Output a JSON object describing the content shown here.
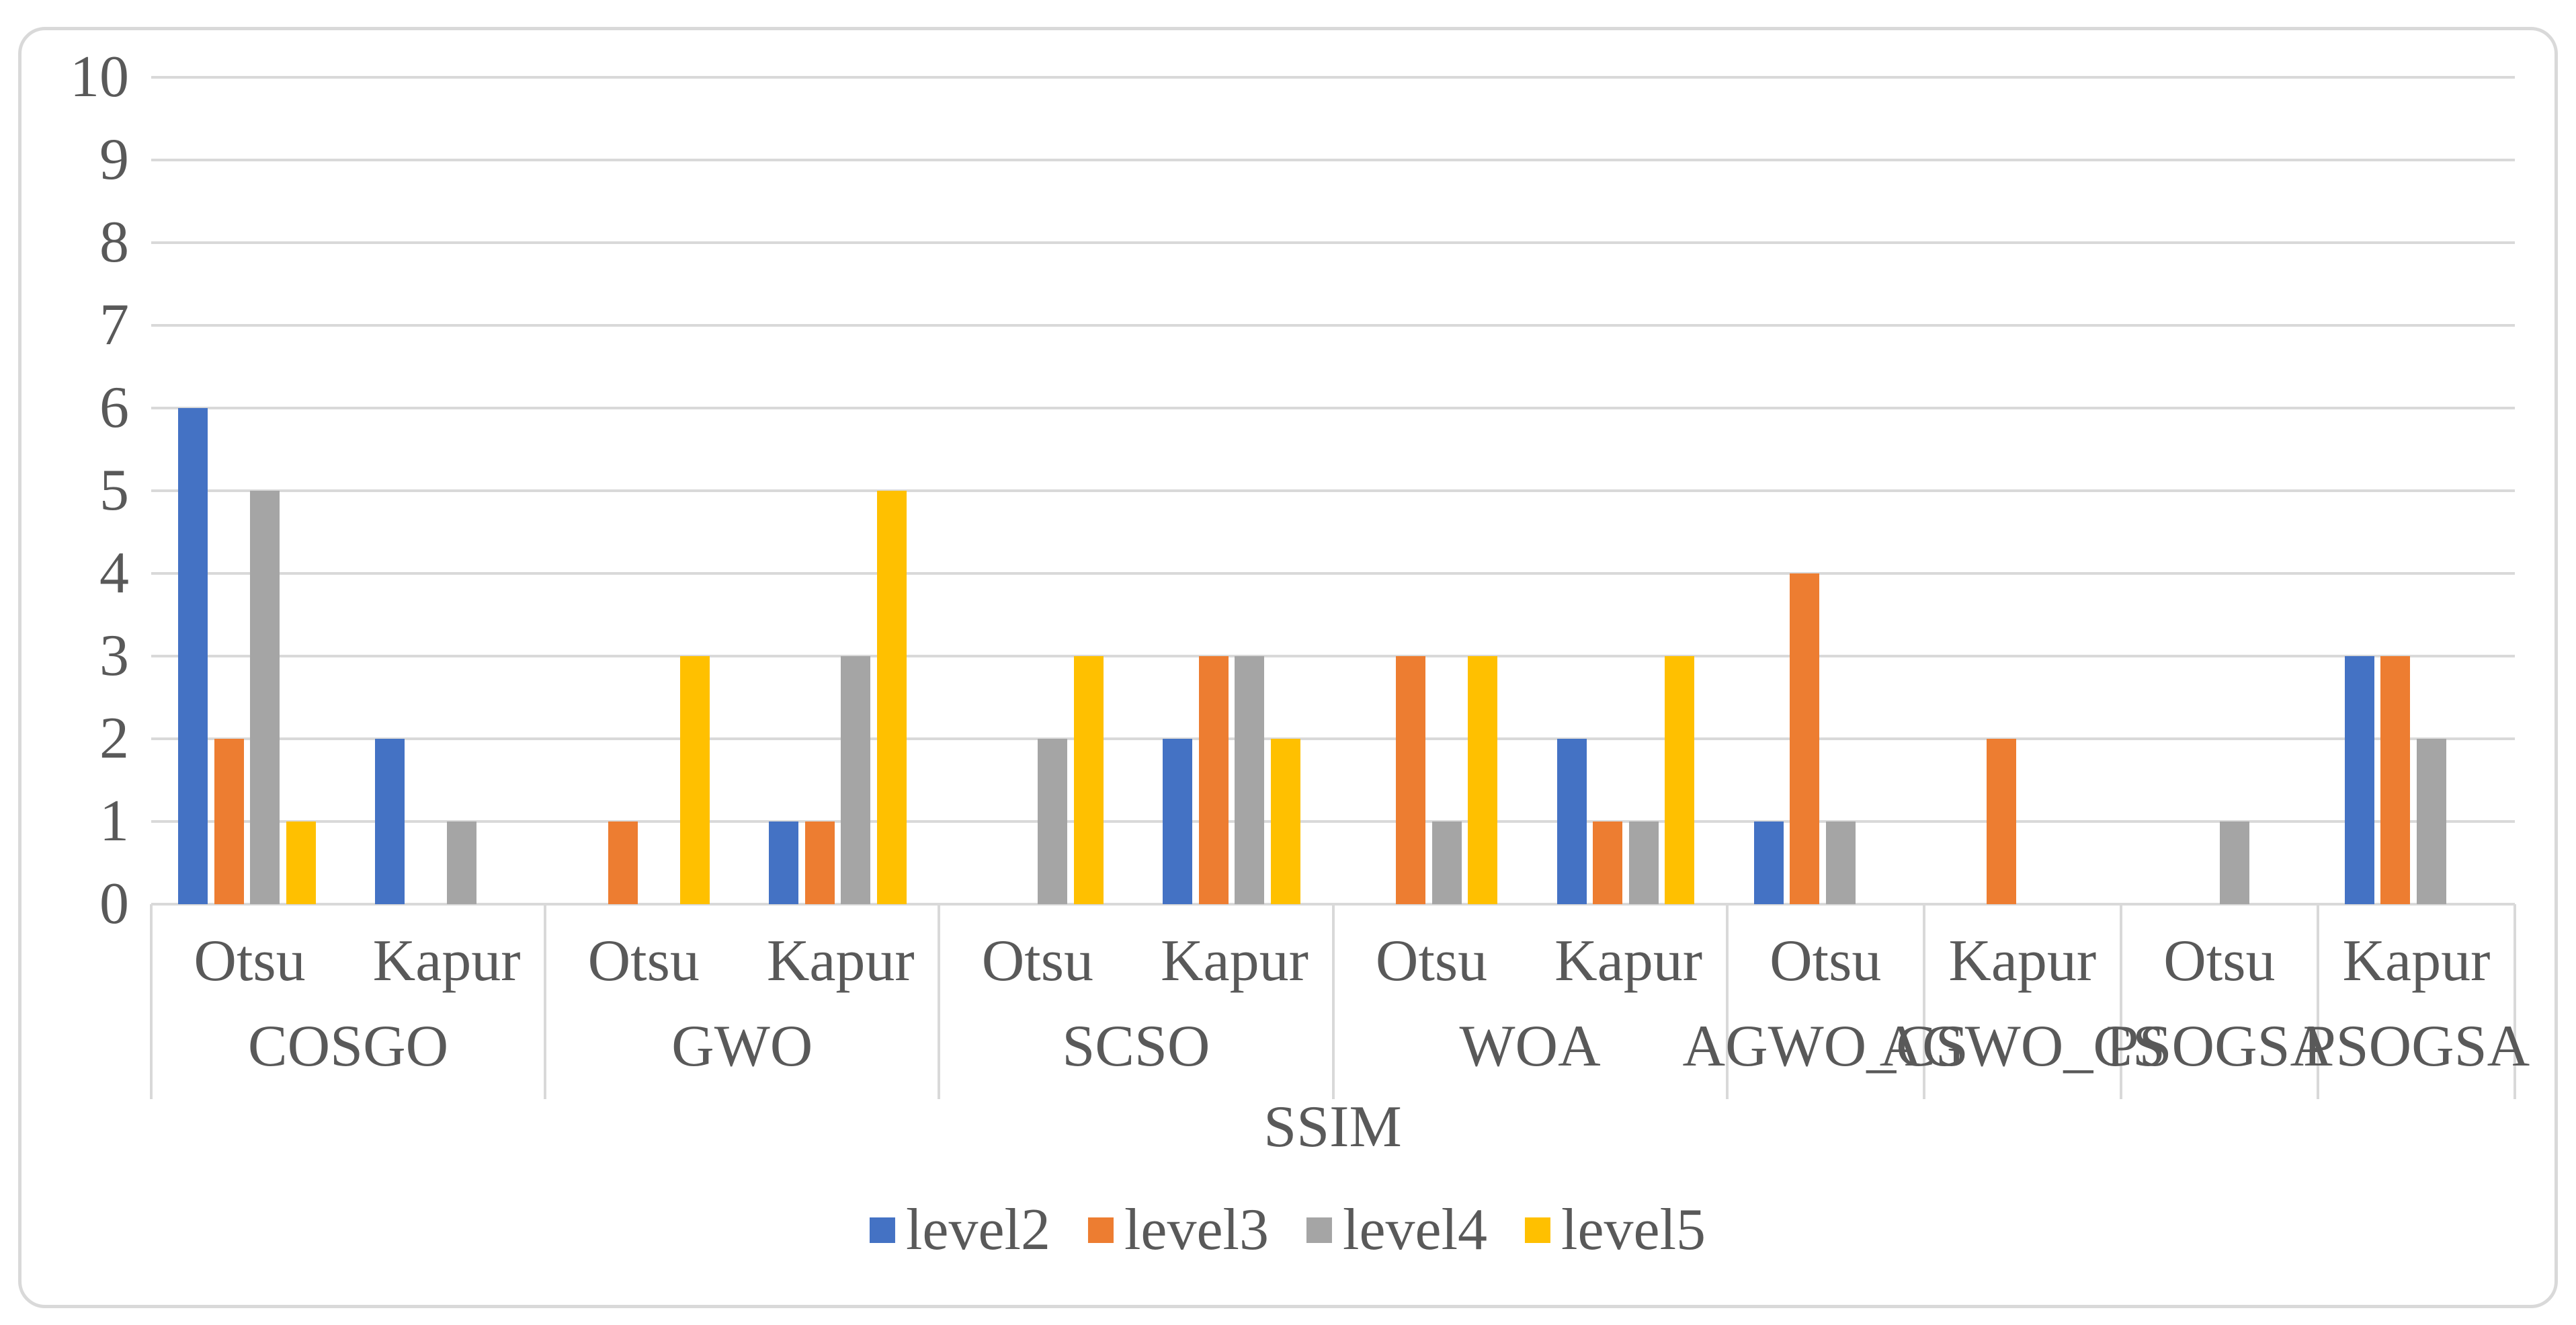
{
  "chart_data": {
    "type": "bar",
    "axis_title": "SSIM",
    "xlabel": "SSIM",
    "ylabel": "",
    "ylim": [
      0,
      10
    ],
    "ytick_step": 1,
    "grid": true,
    "legend_position": "bottom",
    "axis_levels": [
      "threshold-method",
      "algorithm",
      "metric"
    ],
    "groups": [
      {
        "label": "COSGO",
        "methods": [
          "Otsu",
          "Kapur"
        ]
      },
      {
        "label": "GWO",
        "methods": [
          "Otsu",
          "Kapur"
        ]
      },
      {
        "label": "SCSO",
        "methods": [
          "Otsu",
          "Kapur"
        ]
      },
      {
        "label": "WOA",
        "methods": [
          "Otsu",
          "Kapur"
        ]
      },
      {
        "label": "AGWO_CS",
        "methods": [
          "Otsu"
        ]
      },
      {
        "label": "AGWO_CS",
        "methods": [
          "Kapur"
        ]
      },
      {
        "label": "PSOGSA",
        "methods": [
          "Otsu"
        ]
      },
      {
        "label": "PSOGSA",
        "methods": [
          "Kapur"
        ]
      }
    ],
    "categories": [
      "COSGO-Otsu",
      "COSGO-Kapur",
      "GWO-Otsu",
      "GWO-Kapur",
      "SCSO-Otsu",
      "SCSO-Kapur",
      "WOA-Otsu",
      "WOA-Kapur",
      "AGWO_CS-Otsu",
      "AGWO_CS-Kapur",
      "PSOGSA-Otsu",
      "PSOGSA-Kapur"
    ],
    "series": [
      {
        "name": "level2",
        "color": "#4472C4",
        "values": [
          6,
          2,
          0,
          1,
          0,
          2,
          0,
          2,
          1,
          0,
          0,
          3
        ]
      },
      {
        "name": "level3",
        "color": "#ED7D31",
        "values": [
          2,
          0,
          1,
          1,
          0,
          3,
          3,
          1,
          4,
          2,
          0,
          3
        ]
      },
      {
        "name": "level4",
        "color": "#A5A5A5",
        "values": [
          5,
          1,
          0,
          3,
          2,
          3,
          1,
          1,
          1,
          0,
          1,
          2
        ]
      },
      {
        "name": "level5",
        "color": "#FFC000",
        "values": [
          1,
          0,
          3,
          5,
          3,
          2,
          3,
          3,
          0,
          0,
          0,
          0
        ]
      }
    ]
  },
  "colors": {
    "background": "#FFFFFF",
    "gridline": "#D9D9D9",
    "axis_table_line": "#D9D9D9",
    "figure_border": "#D9D9D9",
    "text": "#595959"
  }
}
